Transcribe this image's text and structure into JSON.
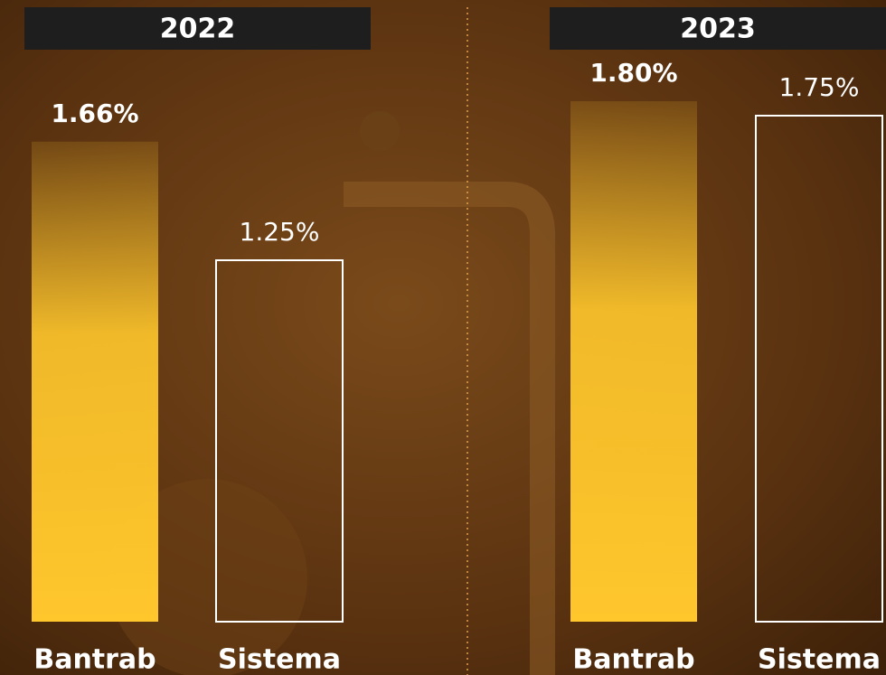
{
  "chart_data": [
    {
      "type": "bar",
      "title": "2022",
      "categories": [
        "Bantrab",
        "Sistema"
      ],
      "values": [
        1.66,
        1.25
      ],
      "value_labels": [
        "1.66%",
        "1.25%"
      ],
      "colors": [
        "#ffc72c",
        "#ffffff"
      ],
      "bar_styles": [
        "filled",
        "outline"
      ]
    },
    {
      "type": "bar",
      "title": "2023",
      "categories": [
        "Bantrab",
        "Sistema"
      ],
      "values": [
        1.8,
        1.75
      ],
      "value_labels": [
        "1.80%",
        "1.75%"
      ],
      "colors": [
        "#ffc72c",
        "#ffffff"
      ],
      "bar_styles": [
        "filled",
        "outline"
      ]
    }
  ]
}
